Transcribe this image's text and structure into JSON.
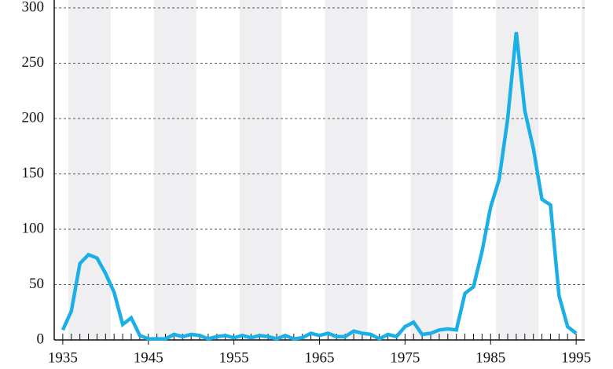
{
  "chart_data": {
    "type": "line",
    "x": [
      1935,
      1936,
      1937,
      1938,
      1939,
      1940,
      1941,
      1942,
      1943,
      1944,
      1945,
      1946,
      1947,
      1948,
      1949,
      1950,
      1951,
      1952,
      1953,
      1954,
      1955,
      1956,
      1957,
      1958,
      1959,
      1960,
      1961,
      1962,
      1963,
      1964,
      1965,
      1966,
      1967,
      1968,
      1969,
      1970,
      1971,
      1972,
      1973,
      1974,
      1975,
      1976,
      1977,
      1978,
      1979,
      1980,
      1981,
      1982,
      1983,
      1984,
      1985,
      1986,
      1987,
      1988,
      1989,
      1990,
      1991,
      1992,
      1993,
      1994,
      1995
    ],
    "values": [
      9,
      26,
      69,
      77,
      74,
      60,
      43,
      14,
      20,
      4,
      1,
      1,
      1,
      5,
      3,
      5,
      4,
      1,
      3,
      4,
      2,
      4,
      2,
      4,
      3,
      1,
      4,
      1,
      2,
      6,
      4,
      6,
      3,
      3,
      8,
      6,
      5,
      1,
      5,
      3,
      12,
      16,
      5,
      6,
      9,
      10,
      9,
      42,
      48,
      80,
      120,
      145,
      200,
      278,
      207,
      173,
      127,
      122,
      40,
      12,
      6
    ],
    "color": "#1aafe6",
    "xlim": [
      1934,
      1996
    ],
    "xticks": [
      1935,
      1945,
      1955,
      1965,
      1975,
      1985,
      1995
    ],
    "ylim": [
      0,
      300
    ],
    "yticks": [
      0,
      50,
      100,
      150,
      200,
      250,
      300
    ],
    "grid": true
  }
}
